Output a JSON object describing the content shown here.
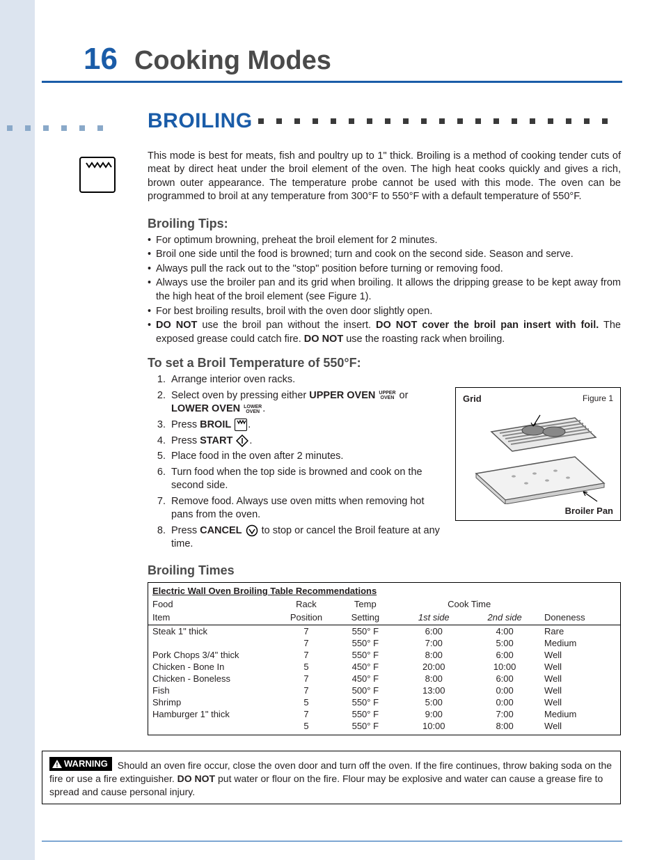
{
  "page": {
    "number": "16",
    "chapter_title": "Cooking Modes"
  },
  "section": {
    "title": "BROILING",
    "intro": "This mode is best for meats, fish and poultry up to 1\" thick. Broiling is a method of cooking tender cuts of meat by direct heat under the broil element of the oven. The high heat cooks quickly and gives a rich, brown outer appearance. The temperature probe cannot be used with this mode. The oven can be programmed to broil at any temperature from 300°F to 550°F with a default temperature of 550°F."
  },
  "tips": {
    "heading": "Broiling Tips:",
    "items": [
      "For optimum browning, preheat the broil element for 2 minutes.",
      "Broil one side until the food is browned; turn and cook on the second side. Season and serve.",
      "Always pull the rack out to the \"stop\" position before turning or removing food.",
      "Always use the broiler pan and its grid when broiling. It allows the dripping grease to be kept away from the high heat of the broil element (see Figure 1).",
      "For best broiling results, broil with the oven door slightly open."
    ],
    "donot_pre": "DO NOT",
    "donot_line_1a": " use the broil pan without the insert. ",
    "donot_bold_2": "DO NOT cover the broil pan insert with foil.",
    "donot_line_2a": " The exposed grease could catch fire. ",
    "donot_bold_3": "DO NOT",
    "donot_line_3a": " use the roasting rack when broiling."
  },
  "set_temp": {
    "heading": "To set a Broil Temperature of 550°F:",
    "s1": "Arrange interior oven racks.",
    "s2a": "Select oven by pressing either ",
    "s2_upper": "UPPER OVEN",
    "s2_upper_tiny1": "UPPER",
    "s2_upper_tiny2": "OVEN",
    "s2_or": " or ",
    "s2_lower": "LOWER OVEN",
    "s2_lower_tiny1": "LOWER",
    "s2_lower_tiny2": "OVEN",
    "s3a": "Press ",
    "s3_broil": "BROIL",
    "s4a": "Press ",
    "s4_start": "START",
    "s5": "Place food in the oven after 2 minutes.",
    "s6": "Turn food when the top side is browned and cook on the second side.",
    "s7": "Remove food. Always use oven mitts when removing hot pans from the oven.",
    "s8a": "Press ",
    "s8_cancel": "CANCEL",
    "s8b": " to stop or cancel the Broil feature at any time."
  },
  "figure": {
    "grid_label": "Grid",
    "fig_label": "Figure 1",
    "pan_label": "Broiler Pan"
  },
  "table": {
    "heading": "Broiling Times",
    "title": "Electric Wall Oven Broiling Table Recommendations",
    "cols": {
      "food1": "Food",
      "food2": "Item",
      "rack1": "Rack",
      "rack2": "Position",
      "temp1": "Temp",
      "temp2": "Setting",
      "cook": "Cook Time",
      "side1": "1st side",
      "side2": "2nd side",
      "done": "Doneness"
    },
    "col_widths": [
      "28%",
      "11%",
      "14%",
      "15%",
      "15%",
      "17%"
    ],
    "rows": [
      {
        "food": "Steak 1\" thick",
        "rack": "7",
        "temp": "550° F",
        "s1": "6:00",
        "s2": "4:00",
        "done": "Rare"
      },
      {
        "food": "",
        "rack": "7",
        "temp": "550° F",
        "s1": "7:00",
        "s2": "5:00",
        "done": "Medium"
      },
      {
        "food": "Pork Chops 3/4\" thick",
        "rack": "7",
        "temp": "550° F",
        "s1": "8:00",
        "s2": "6:00",
        "done": "Well"
      },
      {
        "food": "Chicken - Bone In",
        "rack": "5",
        "temp": "450° F",
        "s1": "20:00",
        "s2": "10:00",
        "done": "Well"
      },
      {
        "food": "Chicken - Boneless",
        "rack": "7",
        "temp": "450° F",
        "s1": "8:00",
        "s2": "6:00",
        "done": "Well"
      },
      {
        "food": "Fish",
        "rack": "7",
        "temp": "500° F",
        "s1": "13:00",
        "s2": "0:00",
        "done": "Well"
      },
      {
        "food": "Shrimp",
        "rack": "5",
        "temp": "550° F",
        "s1": "5:00",
        "s2": "0:00",
        "done": "Well"
      },
      {
        "food": "Hamburger 1\" thick",
        "rack": "7",
        "temp": "550° F",
        "s1": "9:00",
        "s2": "7:00",
        "done": "Medium"
      },
      {
        "food": "",
        "rack": "5",
        "temp": "550° F",
        "s1": "10:00",
        "s2": "8:00",
        "done": "Well"
      }
    ]
  },
  "warning": {
    "badge": "WARNING",
    "t1": " Should an oven fire occur, close the oven door and turn off the oven. If the fire continues, throw baking soda on the fire or use a fire extinguisher. ",
    "b1": "DO NOT",
    "t2": " put water or flour on the fire. Flour may be explosive and water can cause a grease fire to spread and cause personal injury."
  },
  "colors": {
    "accent": "#1a5ca8",
    "left_band": "#dce4ef",
    "footer_rule": "#7da6d2",
    "text": "#231f20",
    "gray_heading": "#4a4a4a"
  }
}
